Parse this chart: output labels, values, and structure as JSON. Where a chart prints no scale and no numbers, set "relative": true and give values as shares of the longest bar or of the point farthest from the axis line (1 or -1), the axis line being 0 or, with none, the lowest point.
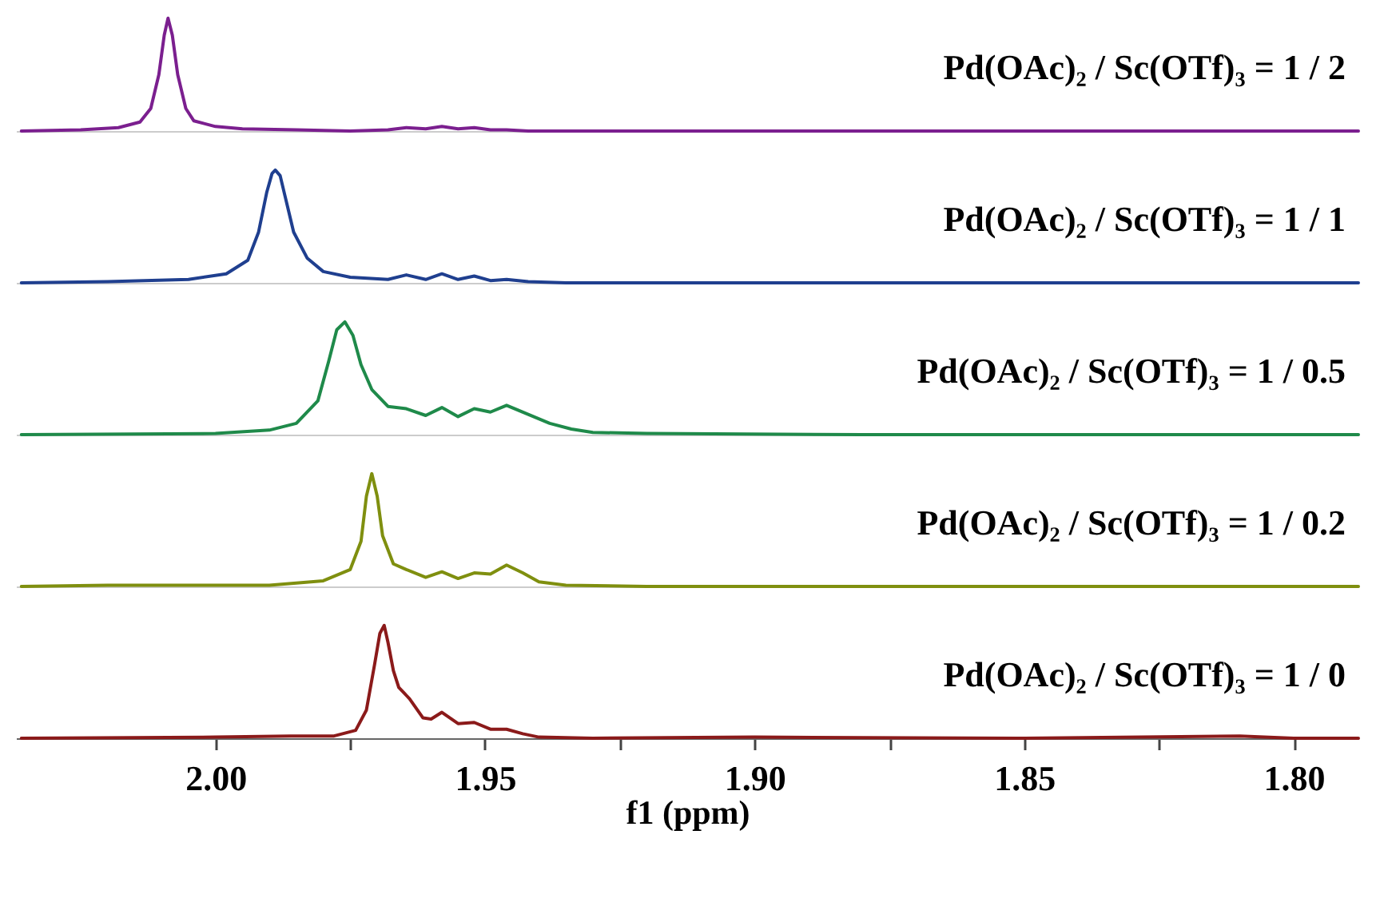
{
  "chart_data": [
    {
      "type": "line",
      "relative": true,
      "xlim": [
        2.037,
        1.788
      ],
      "tick_labels": false,
      "series": [
        {
          "name": "Pd(OAc)₂ / Sc(OTf)₃ = 1 / 2",
          "color": "#7b1f8f",
          "x": [
            2.036,
            2.025,
            2.018,
            2.014,
            2.012,
            2.0105,
            2.0095,
            2.0088,
            2.008,
            2.007,
            2.0055,
            2.004,
            2.0,
            1.995,
            1.985,
            1.975,
            1.968,
            1.9646,
            1.961,
            1.958,
            1.955,
            1.952,
            1.949,
            1.946,
            1.942,
            1.935,
            1.92,
            1.88,
            1.84,
            1.8,
            1.788
          ],
          "values": [
            0,
            0.01,
            0.03,
            0.08,
            0.2,
            0.5,
            0.85,
            1,
            0.85,
            0.5,
            0.2,
            0.09,
            0.04,
            0.02,
            0.01,
            0,
            0.01,
            0.03,
            0.02,
            0.04,
            0.02,
            0.03,
            0.01,
            0.01,
            0,
            0,
            0,
            0,
            0,
            0,
            0
          ]
        }
      ]
    },
    {
      "type": "line",
      "relative": true,
      "xlim": [
        2.037,
        1.788
      ],
      "tick_labels": false,
      "series": [
        {
          "name": "Pd(OAc)₂ / Sc(OTf)₃ = 1 / 1",
          "color": "#1f3f8f",
          "x": [
            2.036,
            2.02,
            2.005,
            1.998,
            1.994,
            1.992,
            1.9905,
            1.9895,
            1.9889,
            1.988,
            1.987,
            1.9855,
            1.983,
            1.98,
            1.975,
            1.968,
            1.9646,
            1.961,
            1.958,
            1.955,
            1.952,
            1.949,
            1.946,
            1.942,
            1.935,
            1.92,
            1.88,
            1.84,
            1.8,
            1.788
          ],
          "values": [
            0,
            0.01,
            0.03,
            0.08,
            0.2,
            0.45,
            0.8,
            0.97,
            1,
            0.95,
            0.75,
            0.45,
            0.22,
            0.1,
            0.05,
            0.03,
            0.07,
            0.03,
            0.08,
            0.03,
            0.06,
            0.02,
            0.03,
            0.01,
            0,
            0,
            0,
            0,
            0,
            0
          ]
        }
      ]
    },
    {
      "type": "line",
      "relative": true,
      "xlim": [
        2.037,
        1.788
      ],
      "tick_labels": false,
      "series": [
        {
          "name": "Pd(OAc)₂ / Sc(OTf)₃ = 1 / 0.5",
          "color": "#1f8a4a",
          "x": [
            2.036,
            2.0,
            1.99,
            1.985,
            1.981,
            1.979,
            1.9775,
            1.976,
            1.9745,
            1.973,
            1.971,
            1.968,
            1.9646,
            1.961,
            1.958,
            1.955,
            1.952,
            1.949,
            1.946,
            1.942,
            1.938,
            1.934,
            1.93,
            1.92,
            1.88,
            1.84,
            1.8,
            1.788
          ],
          "values": [
            0,
            0.01,
            0.04,
            0.1,
            0.3,
            0.65,
            0.93,
            1,
            0.88,
            0.62,
            0.4,
            0.25,
            0.23,
            0.17,
            0.24,
            0.16,
            0.23,
            0.2,
            0.26,
            0.18,
            0.1,
            0.05,
            0.02,
            0.01,
            0,
            0,
            0,
            0
          ]
        }
      ]
    },
    {
      "type": "line",
      "relative": true,
      "xlim": [
        2.037,
        1.788
      ],
      "tick_labels": false,
      "series": [
        {
          "name": "Pd(OAc)₂ / Sc(OTf)₃ = 1 / 0.2",
          "color": "#7f8f0f",
          "x": [
            2.036,
            2.02,
            1.99,
            1.98,
            1.975,
            1.973,
            1.972,
            1.971,
            1.97,
            1.969,
            1.967,
            1.9646,
            1.961,
            1.958,
            1.955,
            1.952,
            1.949,
            1.946,
            1.943,
            1.94,
            1.935,
            1.92,
            1.88,
            1.84,
            1.8,
            1.788
          ],
          "values": [
            0,
            0.01,
            0.01,
            0.05,
            0.15,
            0.4,
            0.8,
            1,
            0.8,
            0.45,
            0.2,
            0.15,
            0.08,
            0.13,
            0.07,
            0.12,
            0.11,
            0.19,
            0.12,
            0.04,
            0.01,
            0,
            0,
            0,
            0,
            0
          ]
        }
      ]
    },
    {
      "type": "line",
      "relative": true,
      "xlim": [
        2.037,
        1.788
      ],
      "xticks": [
        {
          "value": 2.0,
          "label": "2.00"
        },
        {
          "value": 1.975,
          "label": null
        },
        1.95,
        {
          "value": 1.925,
          "label": null
        },
        {
          "value": 1.9,
          "label": "1.90"
        },
        {
          "value": 1.875,
          "label": null
        },
        1.85,
        {
          "value": 1.825,
          "label": null
        },
        {
          "value": 1.8,
          "label": "1.80"
        }
      ],
      "xlabel": "f1 (ppm)",
      "tick_labels": "x",
      "series": [
        {
          "name": "Pd(OAc)₂ / Sc(OTf)₃ = 1 / 0",
          "color": "#8b1a1a",
          "x": [
            2.036,
            2.0,
            1.986,
            1.978,
            1.974,
            1.972,
            1.9705,
            1.9695,
            1.9687,
            1.968,
            1.967,
            1.966,
            1.964,
            1.9615,
            1.96,
            1.958,
            1.955,
            1.952,
            1.949,
            1.946,
            1.943,
            1.94,
            1.93,
            1.9,
            1.85,
            1.81,
            1.8,
            1.788
          ],
          "values": [
            0,
            0.01,
            0.02,
            0.02,
            0.07,
            0.25,
            0.65,
            0.93,
            1,
            0.85,
            0.6,
            0.45,
            0.35,
            0.18,
            0.17,
            0.23,
            0.13,
            0.14,
            0.08,
            0.08,
            0.04,
            0.01,
            0,
            0.01,
            0,
            0.02,
            0,
            0
          ]
        }
      ]
    }
  ]
}
